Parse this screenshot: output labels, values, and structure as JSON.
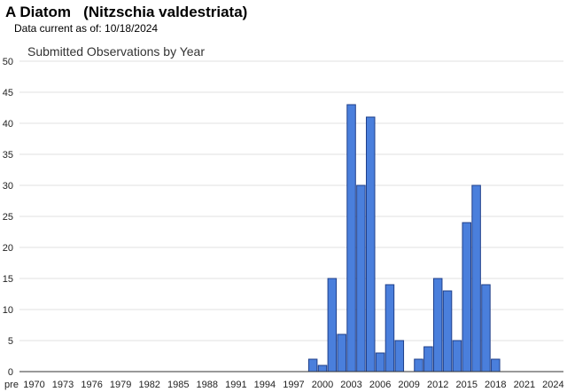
{
  "header": {
    "title": "A Diatom   (Nitzschia valdestriata)",
    "data_current": "Data current as of: 10/18/2024"
  },
  "chart_data": {
    "type": "bar",
    "title": "Submitted Observations by Year",
    "xlabel": "",
    "ylabel": "",
    "ylim": [
      0,
      50
    ],
    "yticks": [
      0,
      5,
      10,
      15,
      20,
      25,
      30,
      35,
      40,
      45,
      50
    ],
    "grid": true,
    "bar_color": "#4a7fdc",
    "bar_edge_color": "#1f3f8a",
    "xtick_labels": [
      "pre",
      "1970",
      "1973",
      "1976",
      "1979",
      "1982",
      "1985",
      "1988",
      "1991",
      "1994",
      "1997",
      "2000",
      "2003",
      "2006",
      "2009",
      "2012",
      "2015",
      "2018",
      "2021",
      "2024"
    ],
    "categories": [
      "pre",
      "1970",
      "1971",
      "1972",
      "1973",
      "1974",
      "1975",
      "1976",
      "1977",
      "1978",
      "1979",
      "1980",
      "1981",
      "1982",
      "1983",
      "1984",
      "1985",
      "1986",
      "1987",
      "1988",
      "1989",
      "1990",
      "1991",
      "1992",
      "1993",
      "1994",
      "1995",
      "1996",
      "1997",
      "1998",
      "1999",
      "2000",
      "2001",
      "2002",
      "2003",
      "2004",
      "2005",
      "2006",
      "2007",
      "2008",
      "2009",
      "2010",
      "2011",
      "2012",
      "2013",
      "2014",
      "2015",
      "2016",
      "2017",
      "2018",
      "2019",
      "2020",
      "2021",
      "2022",
      "2023",
      "2024"
    ],
    "values": [
      0,
      0,
      0,
      0,
      0,
      0,
      0,
      0,
      0,
      0,
      0,
      0,
      0,
      0,
      0,
      0,
      0,
      0,
      0,
      0,
      0,
      0,
      0,
      0,
      0,
      0,
      0,
      0,
      0,
      0,
      2,
      1,
      15,
      6,
      43,
      30,
      41,
      3,
      14,
      5,
      0,
      2,
      4,
      15,
      13,
      5,
      24,
      30,
      14,
      2,
      0,
      0,
      0,
      0,
      0,
      0
    ]
  }
}
